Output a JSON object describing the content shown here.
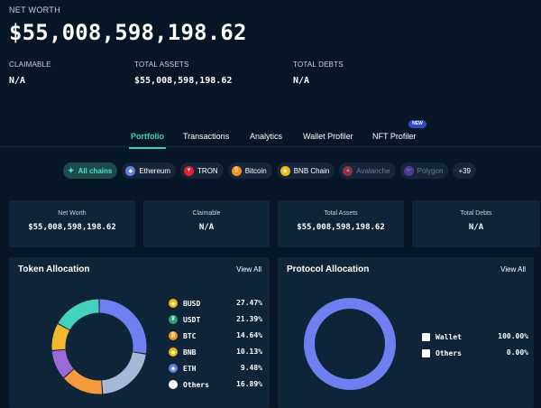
{
  "header": {
    "label": "NET WORTH",
    "value": "$55,008,598,198.62"
  },
  "stats": [
    {
      "label": "CLAIMABLE",
      "value": "N/A"
    },
    {
      "label": "TOTAL ASSETS",
      "value": "$55,008,598,198.62"
    },
    {
      "label": "TOTAL DEBTS",
      "value": "N/A"
    }
  ],
  "tabs": [
    {
      "label": "Portfolio",
      "active": true
    },
    {
      "label": "Transactions"
    },
    {
      "label": "Analytics"
    },
    {
      "label": "Wallet Profiler"
    },
    {
      "label": "NFT Profiler",
      "badge": "NEW"
    }
  ],
  "chains": [
    {
      "label": "All chains",
      "icon": "sparkle-icon",
      "color": "#36d5b0",
      "active": true
    },
    {
      "label": "Ethereum",
      "icon": "ethereum-icon",
      "color": "#627eea"
    },
    {
      "label": "TRON",
      "icon": "tron-icon",
      "color": "#e5202e"
    },
    {
      "label": "Bitcoin",
      "icon": "bitcoin-icon",
      "color": "#f7931a"
    },
    {
      "label": "BNB Chain",
      "icon": "bnb-icon",
      "color": "#f0b90b"
    },
    {
      "label": "Avalanche",
      "icon": "avalanche-icon",
      "color": "#e84142",
      "disabled": true
    },
    {
      "label": "Polygon",
      "icon": "polygon-icon",
      "color": "#8247e5",
      "disabled": true
    },
    {
      "label": "+39"
    }
  ],
  "cards": [
    {
      "label": "Net Worth",
      "value": "$55,008,598,198.62"
    },
    {
      "label": "Claimable",
      "value": "N/A"
    },
    {
      "label": "Total Assets",
      "value": "$55,008,598,198.62"
    },
    {
      "label": "Total Debts",
      "value": "N/A"
    }
  ],
  "token_allocation": {
    "title": "Token Allocation",
    "view_all": "View All",
    "items": [
      {
        "label": "BUSD",
        "value": "27.47%",
        "pct": 27.47,
        "color": "#6f7fef",
        "icon": "busd-icon",
        "icon_color": "#f0b90b"
      },
      {
        "label": "USDT",
        "value": "21.39%",
        "pct": 21.39,
        "color": "#a6b8d8",
        "icon": "usdt-icon",
        "icon_color": "#26a17b"
      },
      {
        "label": "BTC",
        "value": "14.64%",
        "pct": 14.64,
        "color": "#f59a3c",
        "icon": "btc-icon",
        "icon_color": "#f7931a"
      },
      {
        "label": "BNB",
        "value": "10.13%",
        "pct": 10.13,
        "color": "#9a6ad6",
        "icon": "bnb-icon",
        "icon_color": "#f0b90b"
      },
      {
        "label": "ETH",
        "value": "9.48%",
        "pct": 9.48,
        "color": "#f3b92d",
        "icon": "eth-icon",
        "icon_color": "#627eea"
      },
      {
        "label": "Others",
        "value": "16.89%",
        "pct": 16.89,
        "color": "#43d2bb",
        "icon": "others-icon",
        "icon_color": "#ffffff"
      }
    ]
  },
  "protocol_allocation": {
    "title": "Protocol Allocation",
    "view_all": "View All",
    "items": [
      {
        "label": "Wallet",
        "value": "100.00%",
        "pct": 100,
        "color": "#6f7fef",
        "icon": "wallet-icon"
      },
      {
        "label": "Others",
        "value": "0.00%",
        "pct": 0,
        "color": "#ffffff",
        "icon": "others-square-icon"
      }
    ]
  },
  "colors": {
    "background": "#061626",
    "card": "#0e2438",
    "accent": "#36d5b0"
  }
}
